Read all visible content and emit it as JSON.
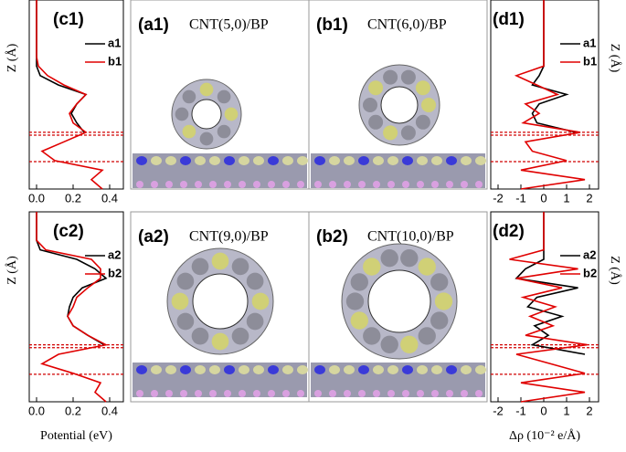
{
  "panels": [
    {
      "label": "(a1)",
      "caption": "CNT(5,0)/BP"
    },
    {
      "label": "(b1)",
      "caption": "CNT(6,0)/BP"
    },
    {
      "label": "(a2)",
      "caption": "CNT(9,0)/BP"
    },
    {
      "label": "(b2)",
      "caption": "CNT(10,0)/BP"
    }
  ],
  "chart_data": [
    {
      "type": "line",
      "title": "(c1)",
      "ylabel": "Z (Å)",
      "legend": "upper right",
      "z": [
        0,
        1,
        2,
        3,
        4,
        5,
        6,
        7,
        8,
        9,
        10,
        11,
        12,
        13,
        14,
        15,
        16,
        17,
        18,
        19,
        20
      ],
      "ylim": [
        0,
        20
      ],
      "xlim": [
        -0.04,
        0.475
      ],
      "xticks": [
        {
          "value": 0,
          "label": "0.0"
        },
        {
          "value": 0.2,
          "label": "0.2"
        },
        {
          "value": 0.4,
          "label": "0.4"
        }
      ],
      "hlines": [
        6.0,
        5.7,
        2.9
      ],
      "hline_color": "#d00000",
      "series": [
        {
          "name": "a1",
          "color": "#000000",
          "values": [
            null,
            null,
            null,
            null,
            null,
            null,
            0.26,
            0.22,
            0.19,
            0.22,
            0.27,
            0.12,
            0.02,
            0,
            0,
            0,
            0,
            0,
            0,
            0,
            0
          ]
        },
        {
          "name": "b1",
          "color": "#e00000",
          "values": [
            0.36,
            0.3,
            0.36,
            0.1,
            0.03,
            0.15,
            0.27,
            0.2,
            0.18,
            0.22,
            0.27,
            0.15,
            0.06,
            0.01,
            0,
            0,
            0,
            0,
            0,
            0,
            0
          ]
        }
      ]
    },
    {
      "type": "line",
      "title": "(c2)",
      "ylabel": "Z (Å)",
      "xlabel": "Potential (eV)",
      "legend": "upper right",
      "z": [
        0,
        1,
        2,
        3,
        4,
        5,
        6,
        7,
        8,
        9,
        10,
        11,
        12,
        13,
        14,
        15,
        16,
        17,
        18,
        19,
        20
      ],
      "ylim": [
        0,
        20
      ],
      "xlim": [
        -0.04,
        0.475
      ],
      "xticks": [
        {
          "value": 0,
          "label": "0.0"
        },
        {
          "value": 0.2,
          "label": "0.2"
        },
        {
          "value": 0.4,
          "label": "0.4"
        }
      ],
      "hlines": [
        6.0,
        5.7,
        2.9
      ],
      "hline_color": "#d00000",
      "series": [
        {
          "name": "a2",
          "color": "#000000",
          "values": [
            null,
            null,
            null,
            null,
            null,
            null,
            0.37,
            0.28,
            0.2,
            0.17,
            0.18,
            0.2,
            0.25,
            0.38,
            0.32,
            0.22,
            0.02,
            0,
            0,
            0,
            0
          ]
        },
        {
          "name": "b2",
          "color": "#e00000",
          "values": [
            0.38,
            0.32,
            0.35,
            0.2,
            0.03,
            0.12,
            0.38,
            0.28,
            0.2,
            0.17,
            0.2,
            0.22,
            0.28,
            0.35,
            0.35,
            0.3,
            0.05,
            0,
            0,
            0,
            0
          ]
        }
      ]
    },
    {
      "type": "line",
      "title": "(d1)",
      "ylabel": "Z (Å)",
      "legend": "upper right",
      "z": [
        0,
        1,
        2,
        3,
        4,
        5,
        6,
        7,
        8,
        9,
        10,
        11,
        12,
        13,
        14,
        15,
        16,
        17,
        18,
        19,
        20
      ],
      "ylim": [
        0,
        20
      ],
      "xlim": [
        -2.32,
        2.4
      ],
      "xticks": [
        -2,
        -1,
        0,
        1,
        2
      ],
      "hlines": [
        6.0,
        5.7,
        2.9
      ],
      "hline_color": "#d00000",
      "series": [
        {
          "name": "a1",
          "color": "#000000",
          "values": [
            null,
            null,
            null,
            null,
            null,
            null,
            1.4,
            -0.3,
            -0.5,
            -0.2,
            1.0,
            -0.5,
            -0.2,
            0,
            0,
            0,
            0,
            0,
            0,
            0,
            0
          ]
        },
        {
          "name": "b1",
          "color": "#e00000",
          "values": [
            -1.0,
            1.8,
            -1.0,
            1.0,
            -0.5,
            -0.8,
            1.6,
            -0.9,
            -0.2,
            -0.8,
            0.6,
            -0.3,
            -1.2,
            0,
            0,
            0,
            0,
            0,
            0,
            0,
            0
          ]
        }
      ]
    },
    {
      "type": "line",
      "title": "(d2)",
      "ylabel": "Z (Å)",
      "xlabel": "Δρ (10⁻² e/Å)",
      "legend": "upper right",
      "z": [
        0,
        1,
        2,
        3,
        4,
        5,
        6,
        7,
        8,
        9,
        10,
        11,
        12,
        13,
        14,
        15,
        16,
        17,
        18,
        19,
        20
      ],
      "ylim": [
        0,
        20
      ],
      "xlim": [
        -2.32,
        2.4
      ],
      "xticks": [
        -2,
        -1,
        0,
        1,
        2
      ],
      "hlines": [
        6.0,
        5.7,
        2.9
      ],
      "hline_color": "#d00000",
      "series": [
        {
          "name": "a2",
          "color": "#000000",
          "values": [
            null,
            null,
            null,
            null,
            null,
            1.8,
            -0.5,
            0.2,
            -0.4,
            0.8,
            -0.7,
            -0.3,
            1.5,
            -1.2,
            -0.8,
            0,
            0,
            0,
            0,
            0,
            0
          ]
        },
        {
          "name": "b2",
          "color": "#e00000",
          "values": [
            -1.0,
            1.8,
            -1.0,
            1.8,
            0.3,
            -1.2,
            1.9,
            -0.8,
            0.4,
            -0.6,
            0.5,
            -0.9,
            0.8,
            -1.2,
            1.5,
            -1.5,
            0,
            0,
            0,
            0,
            0
          ]
        }
      ]
    }
  ]
}
